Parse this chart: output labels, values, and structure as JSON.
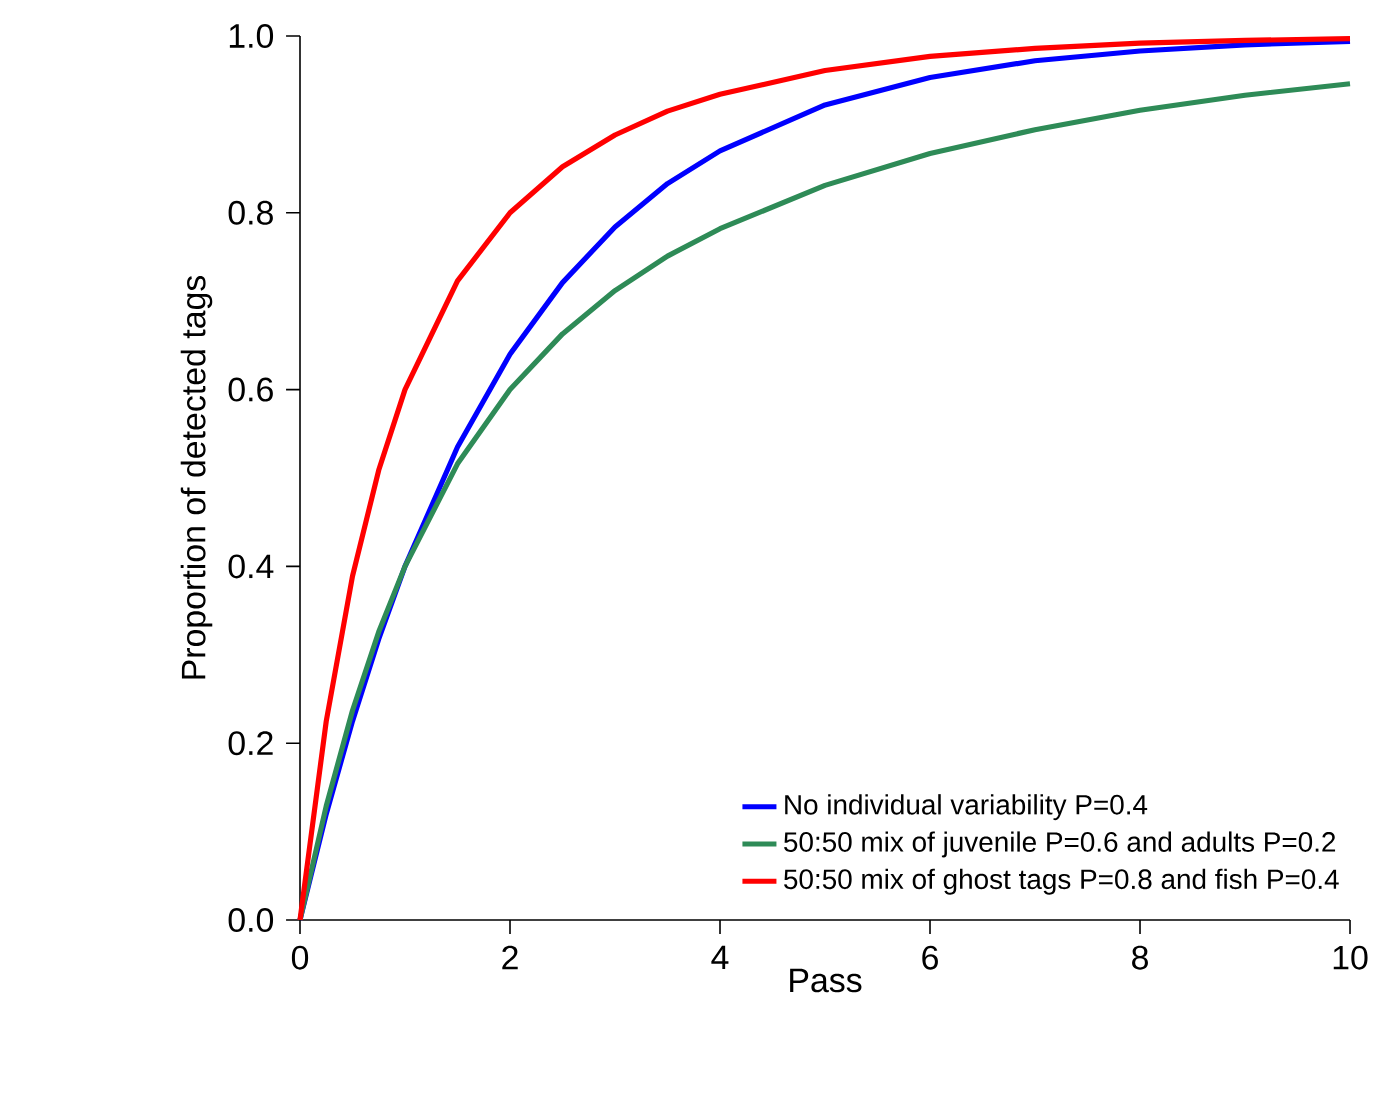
{
  "chart_data": {
    "type": "line",
    "xlabel": "Pass",
    "ylabel": "Proportion of detected tags",
    "xlim": [
      0,
      10
    ],
    "ylim": [
      0,
      1
    ],
    "xticks": [
      0,
      2,
      4,
      6,
      8,
      10
    ],
    "yticks": [
      {
        "value": 0,
        "label": "0.0"
      },
      {
        "value": 0.2,
        "label": "0.2"
      },
      {
        "value": 0.4,
        "label": "0.4"
      },
      {
        "value": 0.6,
        "label": "0.6"
      },
      {
        "value": 0.8,
        "label": "0.8"
      },
      {
        "value": 1,
        "label": "1.0"
      }
    ],
    "x": [
      0,
      0.25,
      0.5,
      0.75,
      1,
      1.5,
      2,
      2.5,
      3,
      3.5,
      4,
      5,
      6,
      7,
      8,
      9,
      10
    ],
    "series": [
      {
        "name": "No individual variability P=0.4",
        "color": "#0000ff",
        "values": [
          0,
          0.12,
          0.225,
          0.318,
          0.4,
          0.535,
          0.64,
          0.721,
          0.784,
          0.833,
          0.87,
          0.922,
          0.953,
          0.972,
          0.983,
          0.99,
          0.994
        ]
      },
      {
        "name": "50:50 mix of juvenile P=0.6 and adults P=0.2",
        "color": "#2e8b57",
        "values": [
          0,
          0.129,
          0.237,
          0.326,
          0.4,
          0.516,
          0.6,
          0.663,
          0.712,
          0.751,
          0.782,
          0.831,
          0.867,
          0.894,
          0.916,
          0.933,
          0.946
        ]
      },
      {
        "name": "50:50 mix of ghost tags P=0.8 and fish P=0.4",
        "color": "#ff0000",
        "values": [
          0,
          0.225,
          0.389,
          0.509,
          0.6,
          0.723,
          0.8,
          0.852,
          0.888,
          0.915,
          0.934,
          0.961,
          0.977,
          0.986,
          0.992,
          0.995,
          0.997
        ]
      }
    ],
    "grid": false,
    "legend": "bottom right",
    "marker": "none",
    "line_style": "solid"
  }
}
